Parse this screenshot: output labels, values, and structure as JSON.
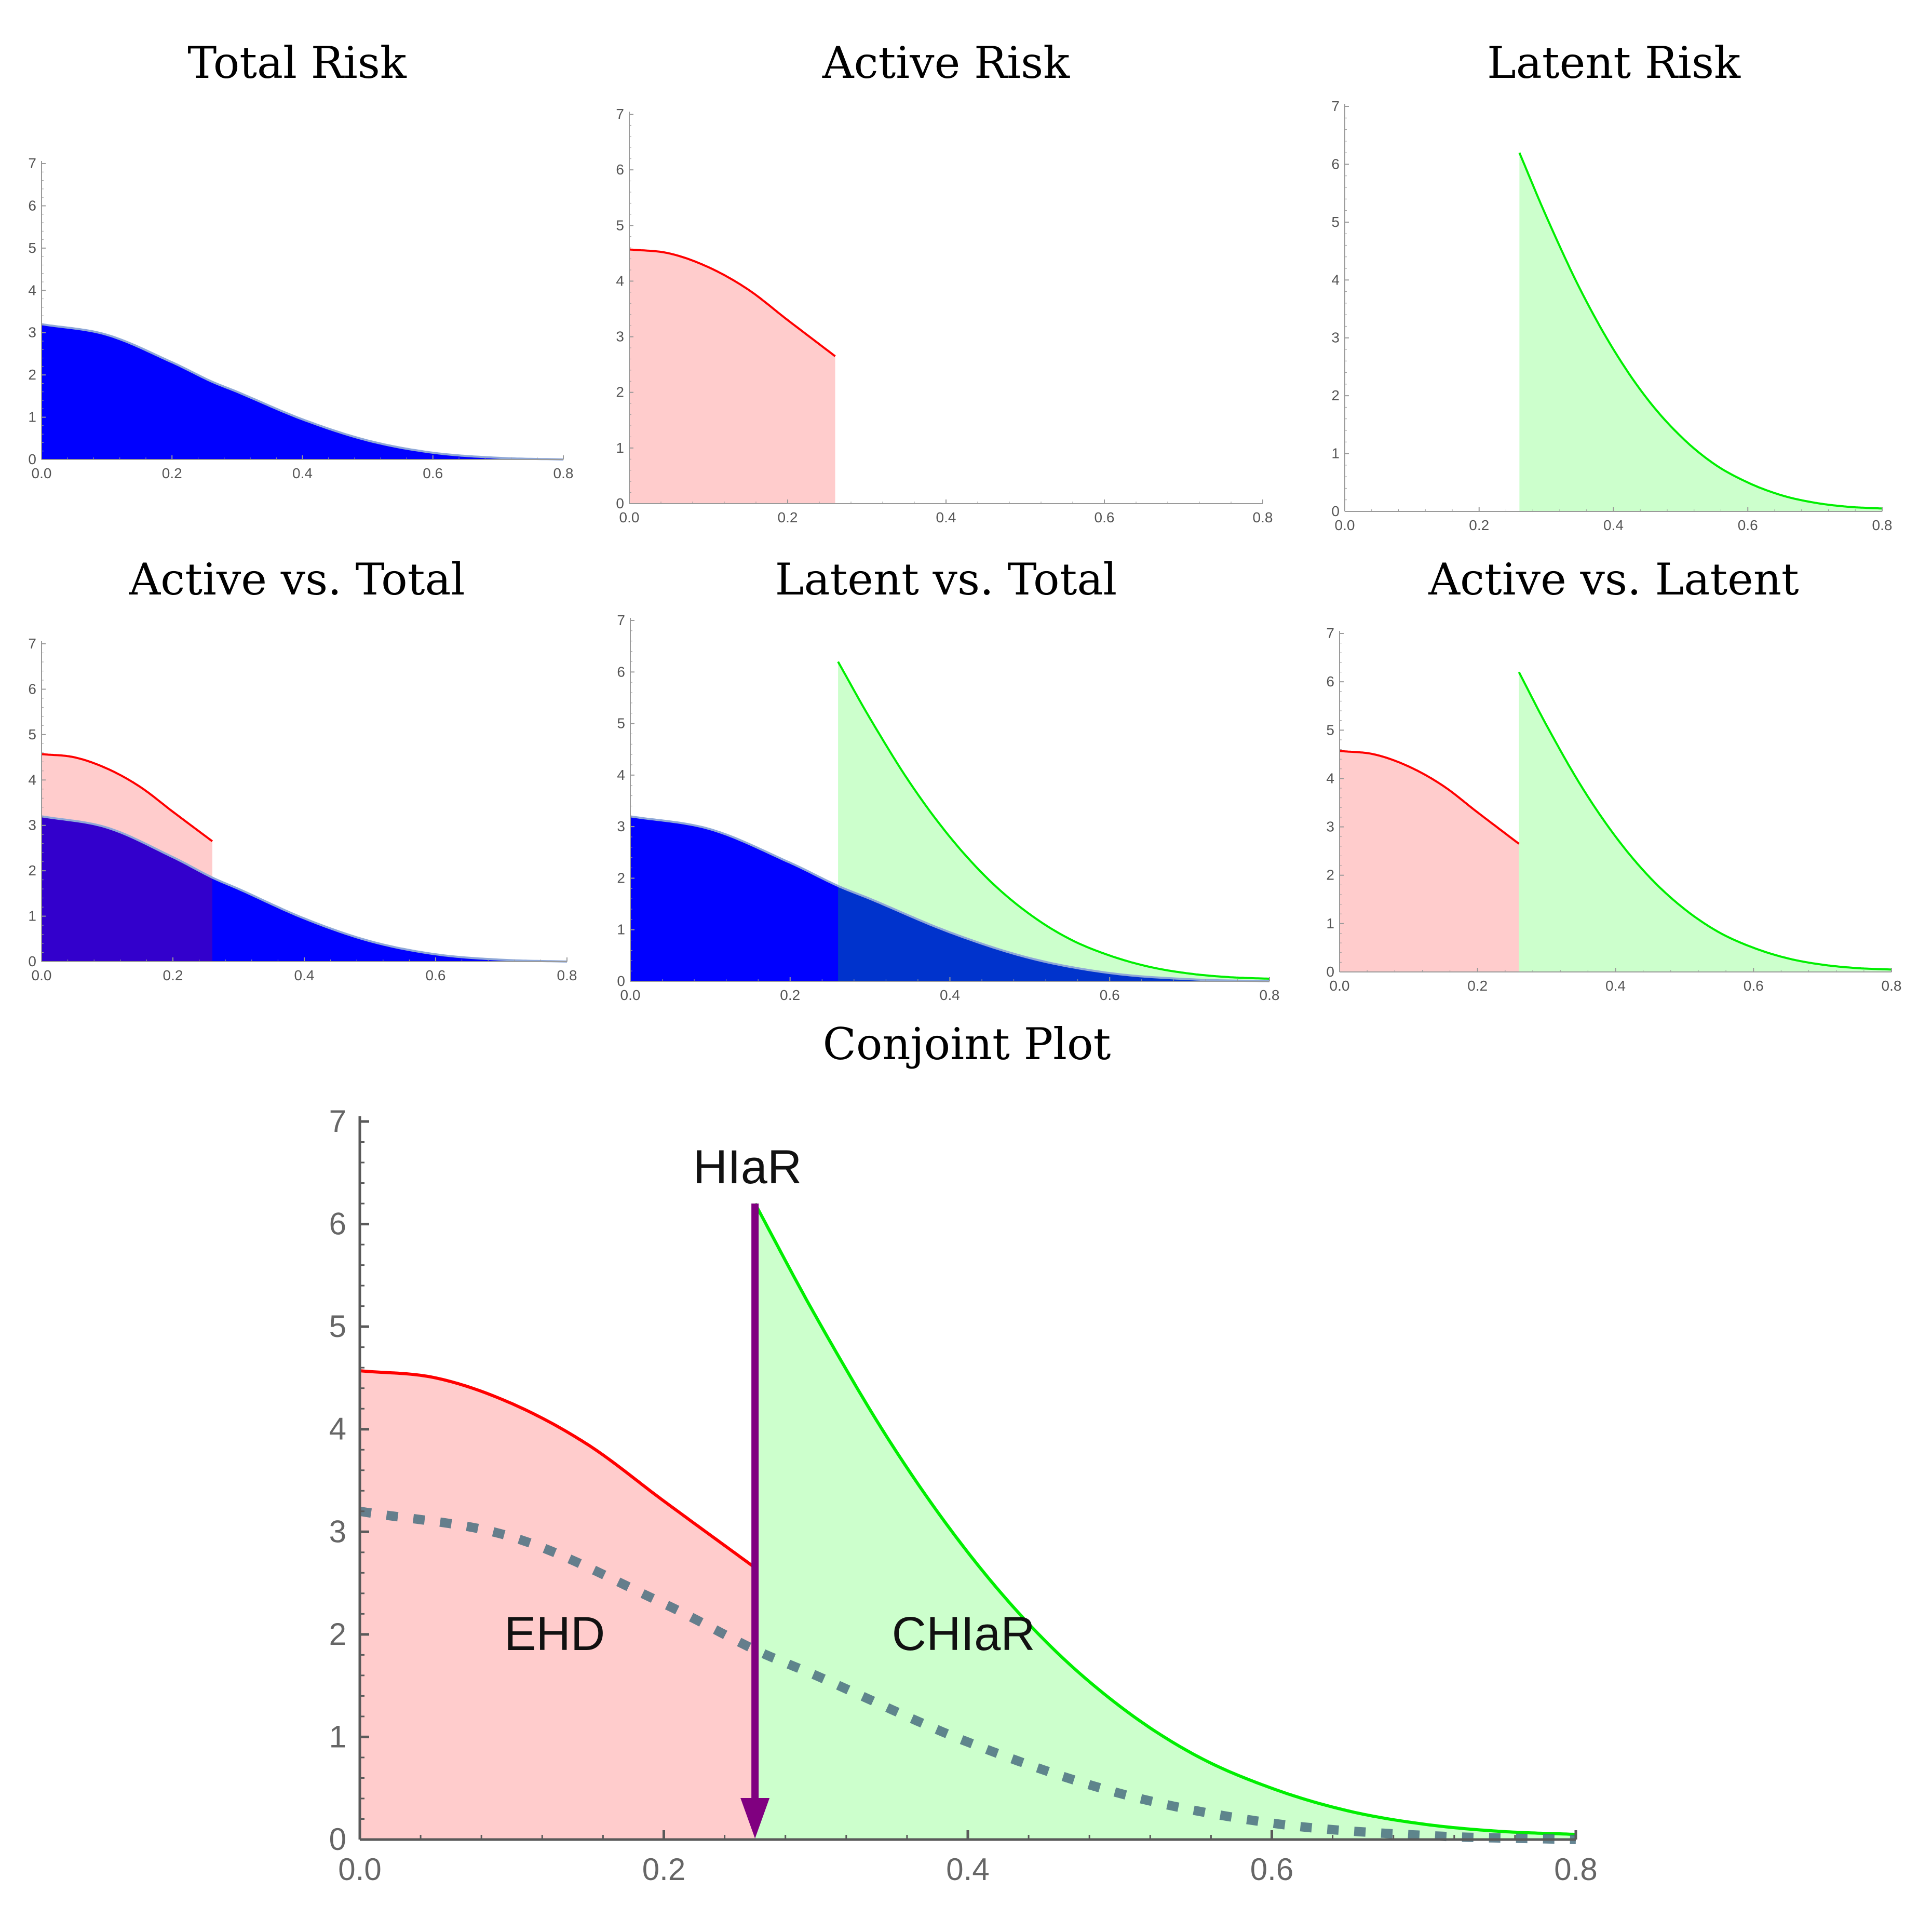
{
  "colors": {
    "total_fill": "#0000ff",
    "total_edge": "#8fa8d8",
    "active_line": "#ff0000",
    "active_fill": "#ffcccc",
    "latent_line": "#00ee00",
    "latent_fill": "#ccffcc",
    "overlap_active_total": "#3300cc",
    "overlap_latent_total": "#0033cc",
    "arrow": "#800080",
    "dashed": "#4a7080",
    "axis": "#555555"
  },
  "chart_data": [
    {
      "id": "total-risk",
      "type": "area",
      "title": "Total Risk",
      "xlim": [
        0,
        0.8
      ],
      "ylim": [
        0,
        7
      ],
      "xticks": [
        "0.0",
        "0.2",
        "0.4",
        "0.6",
        "0.8"
      ],
      "yticks": [
        "0",
        "1",
        "2",
        "3",
        "4",
        "5",
        "6",
        "7"
      ],
      "series": [
        {
          "name": "Total",
          "x": [
            0,
            0.1,
            0.2,
            0.26,
            0.3,
            0.4,
            0.5,
            0.6,
            0.7,
            0.8
          ],
          "y": [
            3.2,
            2.95,
            2.3,
            1.85,
            1.6,
            0.95,
            0.45,
            0.16,
            0.04,
            0.0
          ]
        }
      ]
    },
    {
      "id": "active-risk",
      "type": "area",
      "title": "Active Risk",
      "xlim": [
        0,
        0.8
      ],
      "ylim": [
        0,
        7
      ],
      "xticks": [
        "0.0",
        "0.2",
        "0.4",
        "0.6",
        "0.8"
      ],
      "yticks": [
        "0",
        "1",
        "2",
        "3",
        "4",
        "5",
        "6",
        "7"
      ],
      "series": [
        {
          "name": "Active",
          "x": [
            0,
            0.05,
            0.1,
            0.15,
            0.2,
            0.26
          ],
          "y": [
            4.57,
            4.5,
            4.25,
            3.85,
            3.3,
            2.65
          ]
        }
      ]
    },
    {
      "id": "latent-risk",
      "type": "area",
      "title": "Latent Risk",
      "xlim": [
        0,
        0.8
      ],
      "ylim": [
        0,
        7
      ],
      "xticks": [
        "0.0",
        "0.2",
        "0.4",
        "0.6",
        "0.8"
      ],
      "yticks": [
        "0",
        "1",
        "2",
        "3",
        "4",
        "5",
        "6",
        "7"
      ],
      "series": [
        {
          "name": "Latent",
          "x": [
            0.26,
            0.3,
            0.35,
            0.4,
            0.45,
            0.5,
            0.55,
            0.6,
            0.65,
            0.7,
            0.75,
            0.8
          ],
          "y": [
            6.2,
            5.1,
            3.85,
            2.8,
            1.95,
            1.3,
            0.82,
            0.5,
            0.28,
            0.15,
            0.08,
            0.05
          ]
        }
      ]
    },
    {
      "id": "active-vs-total",
      "type": "area",
      "title": "Active vs. Total",
      "xlim": [
        0,
        0.8
      ],
      "ylim": [
        0,
        7
      ],
      "xticks": [
        "0.0",
        "0.2",
        "0.4",
        "0.6",
        "0.8"
      ],
      "yticks": [
        "0",
        "1",
        "2",
        "3",
        "4",
        "5",
        "6",
        "7"
      ],
      "series": [
        {
          "name": "Active",
          "x": [
            0,
            0.05,
            0.1,
            0.15,
            0.2,
            0.26
          ],
          "y": [
            4.57,
            4.5,
            4.25,
            3.85,
            3.3,
            2.65
          ]
        },
        {
          "name": "Total",
          "x": [
            0,
            0.1,
            0.2,
            0.26,
            0.3,
            0.4,
            0.5,
            0.6,
            0.7,
            0.8
          ],
          "y": [
            3.2,
            2.95,
            2.3,
            1.85,
            1.6,
            0.95,
            0.45,
            0.16,
            0.04,
            0.0
          ]
        }
      ]
    },
    {
      "id": "latent-vs-total",
      "type": "area",
      "title": "Latent vs. Total",
      "xlim": [
        0,
        0.8
      ],
      "ylim": [
        0,
        7
      ],
      "xticks": [
        "0.0",
        "0.2",
        "0.4",
        "0.6",
        "0.8"
      ],
      "yticks": [
        "0",
        "1",
        "2",
        "3",
        "4",
        "5",
        "6",
        "7"
      ],
      "series": [
        {
          "name": "Latent",
          "x": [
            0.26,
            0.3,
            0.35,
            0.4,
            0.45,
            0.5,
            0.55,
            0.6,
            0.65,
            0.7,
            0.75,
            0.8
          ],
          "y": [
            6.2,
            5.1,
            3.85,
            2.8,
            1.95,
            1.3,
            0.82,
            0.5,
            0.28,
            0.15,
            0.08,
            0.05
          ]
        },
        {
          "name": "Total",
          "x": [
            0,
            0.1,
            0.2,
            0.26,
            0.3,
            0.4,
            0.5,
            0.6,
            0.7,
            0.8
          ],
          "y": [
            3.2,
            2.95,
            2.3,
            1.85,
            1.6,
            0.95,
            0.45,
            0.16,
            0.04,
            0.0
          ]
        }
      ]
    },
    {
      "id": "active-vs-latent",
      "type": "area",
      "title": "Active vs. Latent",
      "xlim": [
        0,
        0.8
      ],
      "ylim": [
        0,
        7
      ],
      "xticks": [
        "0.0",
        "0.2",
        "0.4",
        "0.6",
        "0.8"
      ],
      "yticks": [
        "0",
        "1",
        "2",
        "3",
        "4",
        "5",
        "6",
        "7"
      ],
      "series": [
        {
          "name": "Active",
          "x": [
            0,
            0.05,
            0.1,
            0.15,
            0.2,
            0.26
          ],
          "y": [
            4.57,
            4.5,
            4.25,
            3.85,
            3.3,
            2.65
          ]
        },
        {
          "name": "Latent",
          "x": [
            0.26,
            0.3,
            0.35,
            0.4,
            0.45,
            0.5,
            0.55,
            0.6,
            0.65,
            0.7,
            0.75,
            0.8
          ],
          "y": [
            6.2,
            5.1,
            3.85,
            2.8,
            1.95,
            1.3,
            0.82,
            0.5,
            0.28,
            0.15,
            0.08,
            0.05
          ]
        }
      ]
    },
    {
      "id": "conjoint-plot",
      "type": "area",
      "title": "Conjoint Plot",
      "xlim": [
        0,
        0.8
      ],
      "ylim": [
        0,
        7
      ],
      "xticks": [
        "0.0",
        "0.2",
        "0.4",
        "0.6",
        "0.8"
      ],
      "yticks": [
        "0",
        "1",
        "2",
        "3",
        "4",
        "5",
        "6",
        "7"
      ],
      "series": [
        {
          "name": "Active",
          "x": [
            0,
            0.05,
            0.1,
            0.15,
            0.2,
            0.26
          ],
          "y": [
            4.57,
            4.5,
            4.25,
            3.85,
            3.3,
            2.65
          ]
        },
        {
          "name": "Latent",
          "x": [
            0.26,
            0.3,
            0.35,
            0.4,
            0.45,
            0.5,
            0.55,
            0.6,
            0.65,
            0.7,
            0.75,
            0.8
          ],
          "y": [
            6.2,
            5.1,
            3.85,
            2.8,
            1.95,
            1.3,
            0.82,
            0.5,
            0.28,
            0.15,
            0.08,
            0.05
          ]
        },
        {
          "name": "Total (dashed)",
          "x": [
            0,
            0.1,
            0.2,
            0.26,
            0.3,
            0.4,
            0.5,
            0.6,
            0.7,
            0.8
          ],
          "y": [
            3.2,
            2.95,
            2.3,
            1.85,
            1.6,
            0.95,
            0.45,
            0.16,
            0.04,
            0.0
          ]
        }
      ],
      "annotations": [
        {
          "text": "HIaR",
          "x": 0.255,
          "y": 6.55,
          "role": "threshold-label"
        },
        {
          "text": "EHD",
          "x": 0.095,
          "y": 2.0,
          "role": "region-label"
        },
        {
          "text": "CHIaR",
          "x": 0.35,
          "y": 2.0,
          "role": "region-label"
        }
      ],
      "threshold": {
        "x": 0.26,
        "y_from": 6.2,
        "y_to": 0
      }
    }
  ]
}
